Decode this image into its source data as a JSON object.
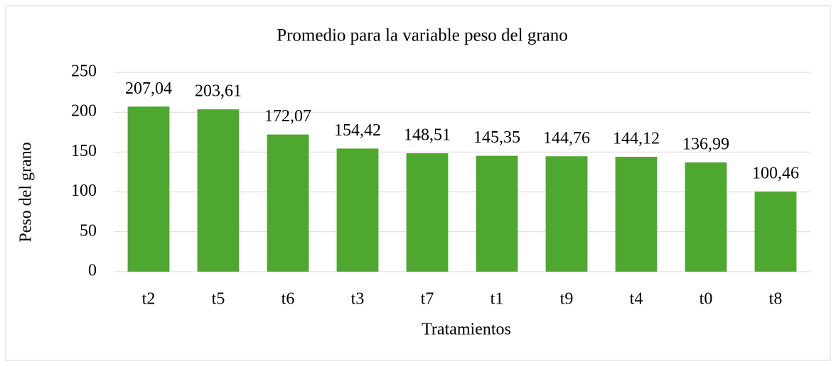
{
  "chart_data": {
    "type": "bar",
    "title": "Promedio para la variable peso del grano",
    "x_label": "Tratamientos",
    "y_label": "Peso del grano",
    "categories": [
      "t2",
      "t5",
      "t6",
      "t3",
      "t7",
      "t1",
      "t9",
      "t4",
      "t0",
      "t8"
    ],
    "values": [
      207.04,
      203.61,
      172.07,
      154.42,
      148.51,
      145.35,
      144.76,
      144.12,
      136.99,
      100.46
    ],
    "value_labels": [
      "207,04",
      "203,61",
      "172,07",
      "154,42",
      "148,51",
      "145,35",
      "144,76",
      "144,12",
      "136,99",
      "100,46"
    ],
    "color": "#4ea72e",
    "ylim": [
      0,
      250
    ],
    "yticks": [
      0,
      50,
      100,
      150,
      200,
      250
    ],
    "grid": true
  }
}
